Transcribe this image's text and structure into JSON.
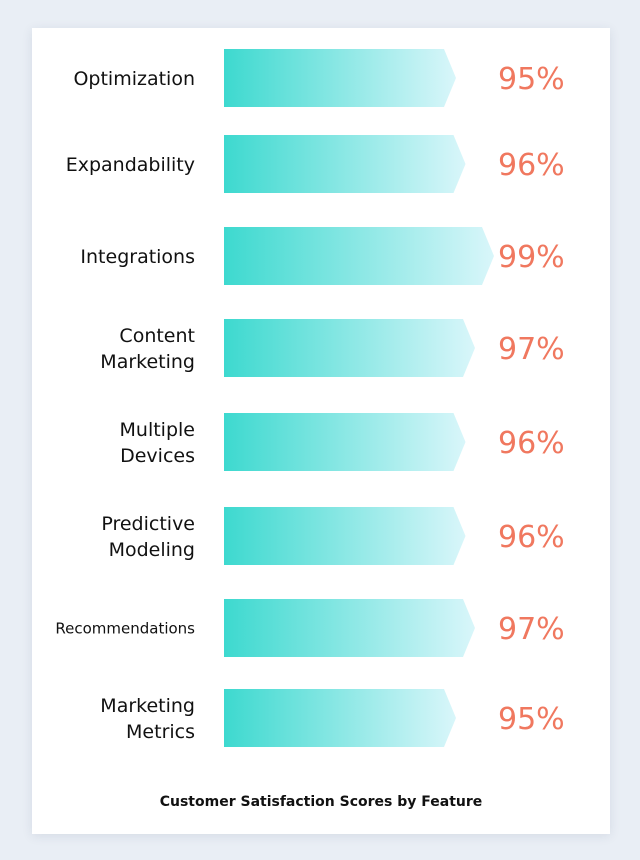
{
  "chart_data": {
    "type": "bar",
    "orientation": "horizontal",
    "title": "Customer Satisfaction Scores by Feature",
    "categories": [
      "Optimization",
      "Expandability",
      "Integrations",
      "Content Marketing",
      "Multiple Devices",
      "Predictive Modeling",
      "Recommendations",
      "Marketing Metrics"
    ],
    "values": [
      95,
      96,
      99,
      97,
      96,
      96,
      97,
      95
    ],
    "value_labels": [
      "95%",
      "96%",
      "99%",
      "97%",
      "96%",
      "96%",
      "97%",
      "95%"
    ],
    "legend": "none",
    "grid": false
  },
  "colors": {
    "bar_start": "#3dd9cf",
    "bar_end": "#d9f6fa",
    "value_text": "#f0785f",
    "label_text": "#111111"
  }
}
